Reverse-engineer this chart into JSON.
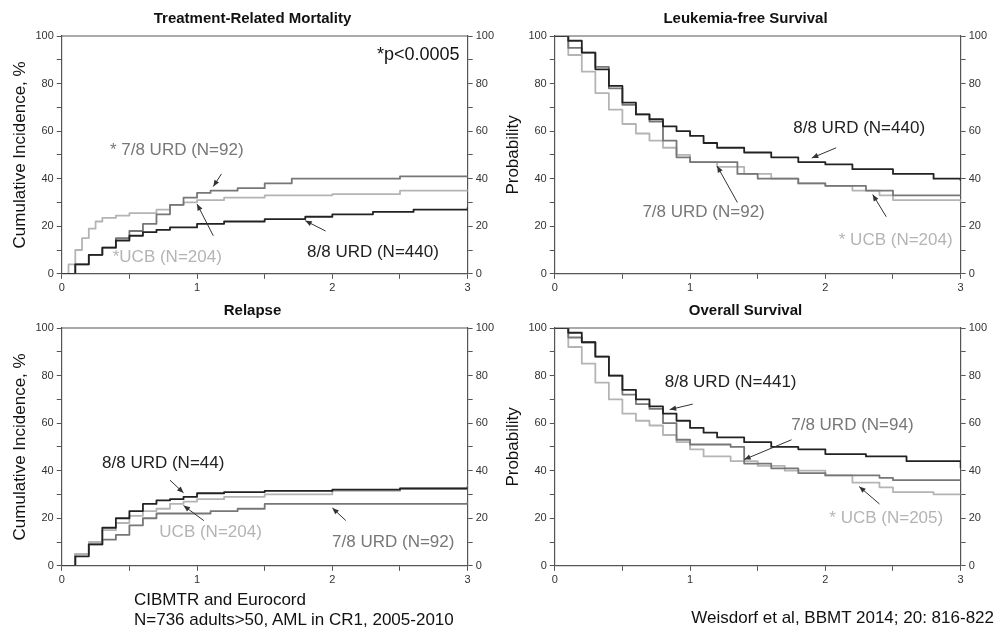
{
  "chart_data": [
    {
      "type": "step",
      "title": "Treatment-Related Mortality",
      "ylabel": "Cumulative Incidence, %",
      "xlim": [
        0,
        3
      ],
      "xticks": [
        0,
        {
          "value": 0.5,
          "label": null
        },
        1,
        {
          "value": 1.5,
          "label": null
        },
        2,
        {
          "value": 2.5,
          "label": null
        },
        3
      ],
      "ylim": [
        0,
        100
      ],
      "yticks": [
        0,
        {
          "value": 10,
          "label": null
        },
        20,
        {
          "value": 30,
          "label": null
        },
        40,
        {
          "value": 50,
          "label": null
        },
        60,
        {
          "value": 70,
          "label": null
        },
        80,
        {
          "value": 90,
          "label": null
        },
        100
      ],
      "y2lim": [
        0,
        100
      ],
      "y2ticks": [
        0,
        {
          "value": 10,
          "label": null
        },
        20,
        {
          "value": 30,
          "label": null
        },
        40,
        {
          "value": 50,
          "label": null
        },
        60,
        {
          "value": 70,
          "label": null
        },
        80,
        {
          "value": 90,
          "label": null
        },
        100
      ],
      "grid": false,
      "legend": false,
      "annotations": [
        "*p<0.0005"
      ],
      "series": [
        {
          "name": "8/8 URD (N=440)",
          "color": "#222222",
          "x": [
            0,
            0.1,
            0.2,
            0.3,
            0.4,
            0.5,
            0.6,
            0.7,
            0.8,
            1.0,
            1.2,
            1.5,
            1.8,
            2.0,
            2.3,
            2.6,
            3.0
          ],
          "values": [
            0,
            4,
            8,
            11,
            14,
            16,
            17.5,
            18.5,
            19.5,
            21,
            22,
            23,
            24,
            25,
            26,
            27,
            28
          ]
        },
        {
          "name": "* 7/8 URD (N=92)",
          "color": "#777777",
          "x": [
            0,
            0.1,
            0.2,
            0.3,
            0.4,
            0.5,
            0.6,
            0.7,
            0.8,
            0.9,
            1.0,
            1.1,
            1.3,
            1.5,
            1.7,
            2.0,
            2.5,
            3.0
          ],
          "values": [
            0,
            4,
            8,
            11,
            15,
            18,
            21,
            25,
            29,
            32,
            34,
            35,
            36,
            38,
            40,
            40,
            41,
            41
          ]
        },
        {
          "name": "*UCB (N=204)",
          "color": "#b4b4b4",
          "x": [
            0,
            0.05,
            0.1,
            0.15,
            0.2,
            0.25,
            0.3,
            0.4,
            0.5,
            0.7,
            0.8,
            0.9,
            1.0,
            1.2,
            1.5,
            2.0,
            2.5,
            3.0
          ],
          "values": [
            0,
            4,
            10,
            15,
            19,
            22,
            23.5,
            24.5,
            25.5,
            27,
            29,
            30,
            31,
            32,
            33,
            33.5,
            35,
            35.5
          ]
        }
      ]
    },
    {
      "type": "step",
      "title": "Leukemia-free Survival",
      "ylabel": "Probability",
      "xlim": [
        0,
        3
      ],
      "xticks": [
        0,
        {
          "value": 0.5,
          "label": null
        },
        1,
        {
          "value": 1.5,
          "label": null
        },
        2,
        {
          "value": 2.5,
          "label": null
        },
        3
      ],
      "ylim": [
        0,
        100
      ],
      "yticks": [
        0,
        {
          "value": 10,
          "label": null
        },
        20,
        {
          "value": 30,
          "label": null
        },
        40,
        {
          "value": 50,
          "label": null
        },
        60,
        {
          "value": 70,
          "label": null
        },
        80,
        {
          "value": 90,
          "label": null
        },
        100
      ],
      "y2lim": [
        0,
        100
      ],
      "y2ticks": [
        0,
        {
          "value": 10,
          "label": null
        },
        20,
        {
          "value": 30,
          "label": null
        },
        40,
        {
          "value": 50,
          "label": null
        },
        60,
        {
          "value": 70,
          "label": null
        },
        80,
        {
          "value": 90,
          "label": null
        },
        100
      ],
      "grid": false,
      "legend": false,
      "series": [
        {
          "name": "8/8 URD (N=440)",
          "color": "#222222",
          "x": [
            0,
            0.1,
            0.2,
            0.3,
            0.4,
            0.5,
            0.6,
            0.7,
            0.8,
            0.9,
            1.0,
            1.1,
            1.2,
            1.4,
            1.6,
            1.8,
            2.0,
            2.2,
            2.5,
            2.8,
            3.0
          ],
          "values": [
            100,
            98,
            93,
            86,
            79,
            72,
            67,
            65,
            62,
            60,
            58,
            55,
            53,
            51,
            49,
            47,
            46,
            44,
            42,
            40,
            39
          ]
        },
        {
          "name": "7/8 URD (N=92)",
          "color": "#777777",
          "x": [
            0,
            0.1,
            0.2,
            0.3,
            0.4,
            0.5,
            0.6,
            0.7,
            0.8,
            0.9,
            1.0,
            1.3,
            1.35,
            1.5,
            1.8,
            2.0,
            2.3,
            2.5,
            3.0
          ],
          "values": [
            100,
            95,
            93,
            87,
            78,
            71,
            67,
            64,
            56,
            49,
            47,
            47,
            42,
            40,
            38,
            37,
            35,
            33,
            33
          ]
        },
        {
          "name": "* UCB (N=204)",
          "color": "#b4b4b4",
          "x": [
            0,
            0.1,
            0.2,
            0.3,
            0.4,
            0.5,
            0.6,
            0.7,
            0.8,
            0.9,
            1.0,
            1.2,
            1.4,
            1.6,
            1.8,
            2.0,
            2.2,
            2.4,
            2.5,
            3.0
          ],
          "values": [
            100,
            92,
            85,
            76,
            69,
            63,
            59,
            56,
            53,
            50,
            47,
            45,
            42,
            40,
            38,
            37,
            35,
            33,
            31,
            30
          ]
        }
      ]
    },
    {
      "type": "step",
      "title": "Relapse",
      "ylabel": "Cumulative Incidence, %",
      "xlim": [
        0,
        3
      ],
      "xticks": [
        0,
        {
          "value": 0.5,
          "label": null
        },
        1,
        {
          "value": 1.5,
          "label": null
        },
        2,
        {
          "value": 2.5,
          "label": null
        },
        3
      ],
      "ylim": [
        0,
        100
      ],
      "yticks": [
        0,
        {
          "value": 10,
          "label": null
        },
        20,
        {
          "value": 30,
          "label": null
        },
        40,
        {
          "value": 50,
          "label": null
        },
        60,
        {
          "value": 70,
          "label": null
        },
        80,
        {
          "value": 90,
          "label": null
        },
        100
      ],
      "y2lim": [
        0,
        100
      ],
      "y2ticks": [
        0,
        {
          "value": 10,
          "label": null
        },
        20,
        {
          "value": 30,
          "label": null
        },
        40,
        {
          "value": 50,
          "label": null
        },
        60,
        {
          "value": 70,
          "label": null
        },
        80,
        {
          "value": 90,
          "label": null
        },
        100
      ],
      "grid": false,
      "legend": false,
      "annotations": [
        "CIBMTR and Eurocord",
        "N=736 adults>50, AML in CR1, 2005-2010"
      ],
      "series": [
        {
          "name": "8/8 URD (N=44)",
          "color": "#222222",
          "x": [
            0,
            0.1,
            0.2,
            0.3,
            0.4,
            0.5,
            0.6,
            0.7,
            0.8,
            0.9,
            1.0,
            1.2,
            1.5,
            2.0,
            2.5,
            3.0
          ],
          "values": [
            0,
            4,
            9,
            16,
            20,
            23,
            26,
            27.5,
            28,
            29,
            30.5,
            31,
            31.5,
            32,
            32.5,
            33.5
          ]
        },
        {
          "name": "UCB (N=204)",
          "color": "#b4b4b4",
          "x": [
            0,
            0.1,
            0.2,
            0.3,
            0.4,
            0.5,
            0.6,
            0.7,
            0.8,
            0.9,
            1.0,
            1.2,
            1.5,
            2.0,
            2.5,
            3.0
          ],
          "values": [
            0,
            5,
            10,
            15,
            18,
            21,
            23,
            24,
            26,
            27,
            28,
            29,
            30,
            31.5,
            32.5,
            34
          ]
        },
        {
          "name": "7/8 URD (N=92)",
          "color": "#777777",
          "x": [
            0,
            0.1,
            0.2,
            0.3,
            0.4,
            0.5,
            0.6,
            0.7,
            1.0,
            1.1,
            1.3,
            1.5,
            2.0,
            2.9,
            3.0
          ],
          "values": [
            0,
            5,
            9,
            11,
            13,
            17,
            20,
            22,
            22,
            23,
            24,
            26,
            26,
            26,
            27
          ]
        }
      ]
    },
    {
      "type": "step",
      "title": "Overall Survival",
      "ylabel": "Probability",
      "xlim": [
        0,
        3
      ],
      "xticks": [
        0,
        {
          "value": 0.5,
          "label": null
        },
        1,
        {
          "value": 1.5,
          "label": null
        },
        2,
        {
          "value": 2.5,
          "label": null
        },
        3
      ],
      "ylim": [
        0,
        100
      ],
      "yticks": [
        0,
        {
          "value": 10,
          "label": null
        },
        20,
        {
          "value": 30,
          "label": null
        },
        40,
        {
          "value": 50,
          "label": null
        },
        60,
        {
          "value": 70,
          "label": null
        },
        80,
        {
          "value": 90,
          "label": null
        },
        100
      ],
      "y2lim": [
        0,
        100
      ],
      "y2ticks": [
        0,
        {
          "value": 10,
          "label": null
        },
        20,
        {
          "value": 30,
          "label": null
        },
        40,
        {
          "value": 50,
          "label": null
        },
        60,
        {
          "value": 70,
          "label": null
        },
        80,
        {
          "value": 90,
          "label": null
        },
        100
      ],
      "grid": false,
      "legend": false,
      "annotations": [
        "Weisdorf et al, BBMT 2014; 20: 816-822"
      ],
      "series": [
        {
          "name": "8/8 URD (N=441)",
          "color": "#222222",
          "x": [
            0,
            0.1,
            0.2,
            0.3,
            0.4,
            0.5,
            0.6,
            0.7,
            0.8,
            0.9,
            1.0,
            1.1,
            1.2,
            1.4,
            1.6,
            1.8,
            2.0,
            2.3,
            2.6,
            3.0
          ],
          "values": [
            100,
            98,
            94,
            88,
            80,
            74,
            70,
            67,
            64,
            61,
            58,
            56,
            54,
            52,
            50,
            49,
            47,
            46,
            44,
            41
          ]
        },
        {
          "name": "7/8 URD (N=94)",
          "color": "#777777",
          "x": [
            0,
            0.1,
            0.2,
            0.3,
            0.4,
            0.5,
            0.6,
            0.7,
            0.8,
            0.9,
            1.0,
            1.3,
            1.4,
            1.6,
            1.8,
            2.0,
            2.4,
            2.5,
            3.0
          ],
          "values": [
            100,
            96,
            94,
            88,
            80,
            72,
            68,
            66,
            60,
            53,
            51,
            50,
            43,
            41,
            39,
            38,
            37,
            36,
            36
          ]
        },
        {
          "name": "* UCB (N=205)",
          "color": "#b4b4b4",
          "x": [
            0,
            0.1,
            0.2,
            0.3,
            0.4,
            0.5,
            0.6,
            0.7,
            0.8,
            0.9,
            1.0,
            1.1,
            1.3,
            1.5,
            1.7,
            2.0,
            2.2,
            2.4,
            2.5,
            2.8,
            3.0
          ],
          "values": [
            100,
            92,
            85,
            77,
            70,
            64,
            61,
            59,
            55,
            52,
            49,
            46,
            44,
            42,
            40,
            38,
            35,
            33,
            31,
            30,
            30
          ]
        }
      ]
    }
  ]
}
